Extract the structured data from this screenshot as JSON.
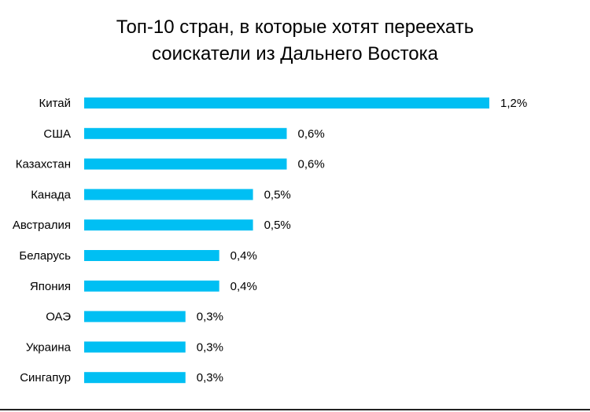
{
  "chart_data": {
    "type": "bar",
    "orientation": "horizontal",
    "title_line1": "Топ-10 стран, в которые хотят переехать",
    "title_line2": "соискатели из Дальнего Востока",
    "categories": [
      "Китай",
      "США",
      "Казахстан",
      "Канада",
      "Австралия",
      "Беларусь",
      "Япония",
      "ОАЭ",
      "Украина",
      "Сингапур"
    ],
    "values": [
      1.2,
      0.6,
      0.6,
      0.5,
      0.5,
      0.4,
      0.4,
      0.3,
      0.3,
      0.3
    ],
    "value_labels": [
      "1,2%",
      "0,6%",
      "0,6%",
      "0,5%",
      "0,5%",
      "0,4%",
      "0,4%",
      "0,3%",
      "0,3%",
      "0,3%"
    ],
    "bar_color": "#00BFF3",
    "grid": false,
    "legend": "none"
  }
}
